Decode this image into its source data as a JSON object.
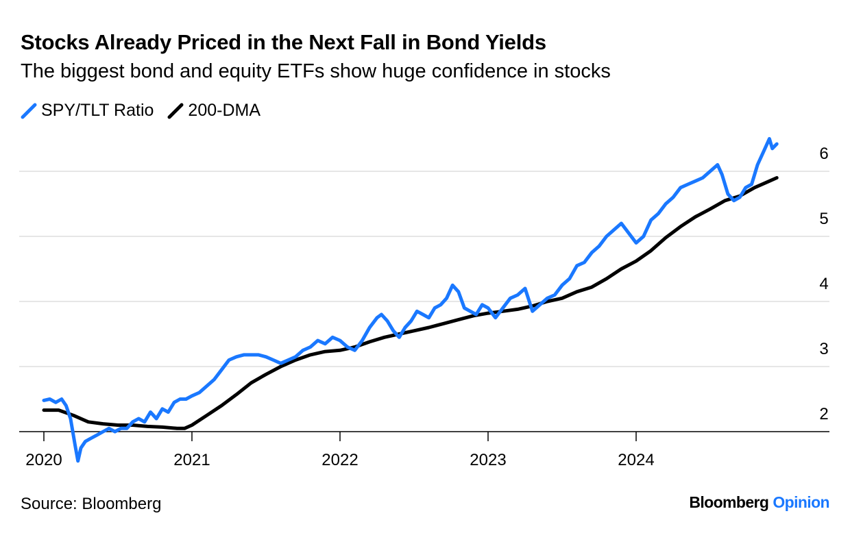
{
  "header": {
    "title": "Stocks Already Priced in the Next Fall in Bond Yields",
    "subtitle": "The biggest bond and equity ETFs show huge confidence in stocks"
  },
  "footer": {
    "source": "Source: Bloomberg",
    "brand_primary": "Bloomberg",
    "brand_secondary": "Opinion"
  },
  "chart_data": {
    "type": "line",
    "title": "Stocks Already Priced in the Next Fall in Bond Yields",
    "subtitle": "The biggest bond and equity ETFs show huge confidence in stocks",
    "xlabel": "",
    "ylabel": "",
    "xlim": [
      2019.9,
      2025.2
    ],
    "ylim": [
      1.75,
      6.5
    ],
    "x_ticks": [
      2020,
      2021,
      2022,
      2023,
      2024
    ],
    "x_tick_labels": [
      "2020",
      "2021",
      "2022",
      "2023",
      "2024"
    ],
    "y_ticks": [
      2,
      3,
      4,
      5,
      6
    ],
    "y_tick_labels": [
      "2",
      "3",
      "4",
      "5",
      "6"
    ],
    "y_axis_side": "right",
    "grid": "horizontal",
    "legend_position": "top-left",
    "series": [
      {
        "name": "SPY/TLT Ratio",
        "color": "#1a78ff",
        "x": [
          2020.0,
          2020.04,
          2020.08,
          2020.12,
          2020.15,
          2020.18,
          2020.21,
          2020.23,
          2020.25,
          2020.28,
          2020.32,
          2020.36,
          2020.4,
          2020.44,
          2020.48,
          2020.52,
          2020.56,
          2020.6,
          2020.64,
          2020.68,
          2020.72,
          2020.76,
          2020.8,
          2020.84,
          2020.88,
          2020.92,
          2020.96,
          2021.0,
          2021.05,
          2021.1,
          2021.15,
          2021.2,
          2021.25,
          2021.3,
          2021.35,
          2021.4,
          2021.45,
          2021.5,
          2021.55,
          2021.6,
          2021.65,
          2021.7,
          2021.75,
          2021.8,
          2021.85,
          2021.9,
          2021.95,
          2022.0,
          2022.05,
          2022.1,
          2022.15,
          2022.2,
          2022.25,
          2022.28,
          2022.32,
          2022.36,
          2022.4,
          2022.44,
          2022.48,
          2022.52,
          2022.56,
          2022.6,
          2022.64,
          2022.68,
          2022.72,
          2022.76,
          2022.8,
          2022.84,
          2022.88,
          2022.92,
          2022.96,
          2023.0,
          2023.05,
          2023.1,
          2023.15,
          2023.2,
          2023.25,
          2023.3,
          2023.35,
          2023.4,
          2023.45,
          2023.5,
          2023.55,
          2023.6,
          2023.65,
          2023.7,
          2023.75,
          2023.8,
          2023.85,
          2023.9,
          2023.95,
          2024.0,
          2024.05,
          2024.1,
          2024.15,
          2024.2,
          2024.25,
          2024.3,
          2024.35,
          2024.4,
          2024.45,
          2024.5,
          2024.55,
          2024.58,
          2024.62,
          2024.66,
          2024.7,
          2024.74,
          2024.78,
          2024.82,
          2024.86,
          2024.9,
          2024.92,
          2024.95
        ],
        "y": [
          2.48,
          2.5,
          2.45,
          2.5,
          2.4,
          2.2,
          1.8,
          1.55,
          1.75,
          1.85,
          1.9,
          1.95,
          2.0,
          2.05,
          2.0,
          2.05,
          2.05,
          2.15,
          2.2,
          2.15,
          2.3,
          2.2,
          2.35,
          2.3,
          2.45,
          2.5,
          2.5,
          2.55,
          2.6,
          2.7,
          2.8,
          2.95,
          3.1,
          3.15,
          3.18,
          3.18,
          3.18,
          3.15,
          3.1,
          3.05,
          3.1,
          3.15,
          3.25,
          3.3,
          3.4,
          3.35,
          3.45,
          3.4,
          3.3,
          3.25,
          3.4,
          3.6,
          3.75,
          3.8,
          3.7,
          3.55,
          3.45,
          3.6,
          3.7,
          3.85,
          3.8,
          3.75,
          3.9,
          3.95,
          4.05,
          4.25,
          4.15,
          3.9,
          3.85,
          3.8,
          3.95,
          3.9,
          3.75,
          3.9,
          4.05,
          4.1,
          4.2,
          3.85,
          3.95,
          4.05,
          4.1,
          4.25,
          4.35,
          4.55,
          4.6,
          4.75,
          4.85,
          5.0,
          5.1,
          5.2,
          5.05,
          4.9,
          5.0,
          5.25,
          5.35,
          5.5,
          5.6,
          5.75,
          5.8,
          5.85,
          5.9,
          6.0,
          6.1,
          5.95,
          5.65,
          5.55,
          5.6,
          5.75,
          5.8,
          6.1,
          6.3,
          6.5,
          6.35,
          6.42
        ]
      },
      {
        "name": "200-DMA",
        "color": "#000000",
        "x": [
          2020.0,
          2020.1,
          2020.2,
          2020.3,
          2020.4,
          2020.5,
          2020.6,
          2020.7,
          2020.8,
          2020.9,
          2020.95,
          2021.0,
          2021.1,
          2021.2,
          2021.3,
          2021.4,
          2021.5,
          2021.6,
          2021.7,
          2021.8,
          2021.9,
          2022.0,
          2022.1,
          2022.2,
          2022.3,
          2022.4,
          2022.5,
          2022.6,
          2022.7,
          2022.8,
          2022.9,
          2023.0,
          2023.1,
          2023.2,
          2023.3,
          2023.4,
          2023.5,
          2023.6,
          2023.7,
          2023.8,
          2023.9,
          2024.0,
          2024.1,
          2024.2,
          2024.3,
          2024.4,
          2024.5,
          2024.6,
          2024.7,
          2024.8,
          2024.9,
          2024.95
        ],
        "y": [
          2.33,
          2.33,
          2.25,
          2.15,
          2.12,
          2.1,
          2.1,
          2.08,
          2.07,
          2.05,
          2.05,
          2.1,
          2.25,
          2.4,
          2.57,
          2.75,
          2.88,
          3.0,
          3.1,
          3.18,
          3.23,
          3.25,
          3.3,
          3.38,
          3.45,
          3.5,
          3.55,
          3.6,
          3.66,
          3.72,
          3.78,
          3.82,
          3.85,
          3.88,
          3.93,
          4.0,
          4.05,
          4.15,
          4.22,
          4.35,
          4.5,
          4.62,
          4.78,
          4.98,
          5.15,
          5.3,
          5.42,
          5.55,
          5.62,
          5.75,
          5.85,
          5.9
        ]
      }
    ]
  }
}
